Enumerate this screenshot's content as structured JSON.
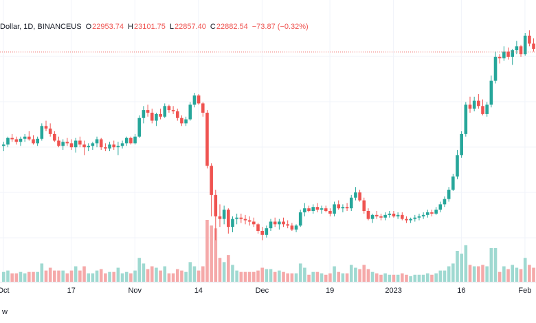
{
  "legend": {
    "symbol": "Dollar, 1D, BINANCEUS",
    "open_label": "O",
    "open": "22953.74",
    "high_label": "H",
    "high": "23101.75",
    "low_label": "L",
    "low": "22857.40",
    "close_label": "C",
    "close": "22882.54",
    "change": "−73.87 (−0.32%)"
  },
  "footer_text": "w",
  "colors": {
    "up": "#26a69a",
    "down": "#ef5350",
    "up_volume": "#9fd9d1",
    "down_volume": "#f5a9a9",
    "price_line": "#ef5350"
  },
  "chart_data": {
    "type": "candlestick",
    "x_tick_labels": [
      "Oct",
      "17",
      "Nov",
      "14",
      "Dec",
      "19",
      "2023",
      "16",
      "Feb"
    ],
    "x_tick_index": [
      0,
      16,
      31,
      46,
      61,
      77,
      92,
      108,
      123
    ],
    "bullish_volume_color": "#9fd9d1",
    "bearish_volume_color": "#f5a9a9",
    "price_line_value": 22882.54,
    "ylim": [
      15400,
      23600
    ],
    "candles": [
      [
        19350,
        19500,
        19150,
        19400
      ],
      [
        19400,
        19700,
        19300,
        19650
      ],
      [
        19650,
        19800,
        19500,
        19600
      ],
      [
        19600,
        19700,
        19400,
        19500
      ],
      [
        19500,
        19700,
        19350,
        19620
      ],
      [
        19620,
        19800,
        19500,
        19700
      ],
      [
        19700,
        19900,
        19550,
        19600
      ],
      [
        19600,
        19750,
        19400,
        19450
      ],
      [
        19450,
        19700,
        19350,
        19620
      ],
      [
        19620,
        20200,
        19550,
        20100
      ],
      [
        20100,
        20300,
        19900,
        20000
      ],
      [
        20000,
        20200,
        19700,
        19800
      ],
      [
        19800,
        19900,
        19500,
        19550
      ],
      [
        19550,
        19700,
        19300,
        19350
      ],
      [
        19350,
        19600,
        19200,
        19500
      ],
      [
        19500,
        19650,
        19350,
        19450
      ],
      [
        19450,
        19600,
        19200,
        19300
      ],
      [
        19300,
        19650,
        19100,
        19550
      ],
      [
        19550,
        19700,
        19300,
        19400
      ],
      [
        19400,
        19550,
        19000,
        19300
      ],
      [
        19300,
        19450,
        19150,
        19350
      ],
      [
        19350,
        19500,
        19200,
        19450
      ],
      [
        19450,
        19700,
        19300,
        19600
      ],
      [
        19600,
        19650,
        19200,
        19300
      ],
      [
        19300,
        19450,
        19150,
        19250
      ],
      [
        19250,
        19500,
        19150,
        19400
      ],
      [
        19400,
        19550,
        19200,
        19300
      ],
      [
        19300,
        19500,
        19000,
        19350
      ],
      [
        19350,
        19550,
        19250,
        19450
      ],
      [
        19450,
        19700,
        19350,
        19650
      ],
      [
        19650,
        19700,
        19400,
        19450
      ],
      [
        19450,
        19800,
        19400,
        19700
      ],
      [
        19700,
        20500,
        19650,
        20400
      ],
      [
        20400,
        20850,
        20200,
        20700
      ],
      [
        20700,
        20900,
        20450,
        20600
      ],
      [
        20600,
        20750,
        20200,
        20300
      ],
      [
        20300,
        20600,
        20100,
        20550
      ],
      [
        20550,
        20750,
        20350,
        20450
      ],
      [
        20450,
        20950,
        20400,
        20850
      ],
      [
        20850,
        20900,
        20600,
        20700
      ],
      [
        20700,
        20850,
        20550,
        20650
      ],
      [
        20650,
        20750,
        20300,
        20400
      ],
      [
        20400,
        20500,
        20100,
        20200
      ],
      [
        20200,
        20450,
        20100,
        20350
      ],
      [
        20350,
        21000,
        20300,
        20900
      ],
      [
        20900,
        21350,
        20800,
        21250
      ],
      [
        21250,
        21300,
        20900,
        20950
      ],
      [
        20950,
        21000,
        20450,
        20600
      ],
      [
        20600,
        20700,
        18500,
        18600
      ],
      [
        18600,
        18700,
        16700,
        17500
      ],
      [
        17500,
        17700,
        15800,
        16700
      ],
      [
        16700,
        17150,
        16300,
        16600
      ],
      [
        16600,
        17100,
        16400,
        16950
      ],
      [
        16950,
        17000,
        16050,
        16300
      ],
      [
        16300,
        16700,
        16100,
        16600
      ],
      [
        16600,
        16800,
        16400,
        16650
      ],
      [
        16650,
        16800,
        16450,
        16600
      ],
      [
        16600,
        16750,
        16400,
        16550
      ],
      [
        16550,
        16700,
        16350,
        16500
      ],
      [
        16500,
        16650,
        16300,
        16400
      ],
      [
        16400,
        16450,
        16050,
        16150
      ],
      [
        16150,
        16300,
        15800,
        16000
      ],
      [
        16000,
        16350,
        15900,
        16250
      ],
      [
        16250,
        16600,
        16150,
        16500
      ],
      [
        16500,
        16650,
        16300,
        16400
      ],
      [
        16400,
        16600,
        16200,
        16500
      ],
      [
        16500,
        16650,
        16300,
        16400
      ],
      [
        16400,
        16550,
        16250,
        16350
      ],
      [
        16350,
        16450,
        16150,
        16200
      ],
      [
        16200,
        16400,
        16100,
        16350
      ],
      [
        16350,
        16950,
        16300,
        16850
      ],
      [
        16850,
        17200,
        16700,
        17000
      ],
      [
        17000,
        17100,
        16850,
        16900
      ],
      [
        16900,
        17150,
        16800,
        17050
      ],
      [
        17050,
        17200,
        16850,
        16950
      ],
      [
        16950,
        17100,
        16800,
        17000
      ],
      [
        17000,
        17100,
        16850,
        16900
      ],
      [
        16900,
        17000,
        16700,
        16800
      ],
      [
        16800,
        17250,
        16700,
        17150
      ],
      [
        17150,
        17300,
        16950,
        17000
      ],
      [
        17000,
        17150,
        16850,
        17050
      ],
      [
        17050,
        17200,
        16900,
        17000
      ],
      [
        17000,
        17500,
        16900,
        17400
      ],
      [
        17400,
        17800,
        17300,
        17600
      ],
      [
        17600,
        17700,
        17250,
        17300
      ],
      [
        17300,
        17400,
        16800,
        16900
      ],
      [
        16900,
        17000,
        16550,
        16600
      ],
      [
        16600,
        16800,
        16450,
        16750
      ],
      [
        16750,
        16900,
        16600,
        16700
      ],
      [
        16700,
        16800,
        16550,
        16650
      ],
      [
        16650,
        16850,
        16550,
        16750
      ],
      [
        16750,
        16900,
        16650,
        16800
      ],
      [
        16800,
        16900,
        16650,
        16700
      ],
      [
        16700,
        16850,
        16600,
        16750
      ],
      [
        16750,
        16850,
        16550,
        16600
      ],
      [
        16600,
        16700,
        16450,
        16550
      ],
      [
        16550,
        16650,
        16450,
        16600
      ],
      [
        16600,
        16750,
        16500,
        16650
      ],
      [
        16650,
        16800,
        16550,
        16700
      ],
      [
        16700,
        16850,
        16600,
        16750
      ],
      [
        16750,
        16950,
        16650,
        16850
      ],
      [
        16850,
        16950,
        16700,
        16800
      ],
      [
        16800,
        17050,
        16750,
        16950
      ],
      [
        16950,
        17250,
        16850,
        17150
      ],
      [
        17150,
        17450,
        17050,
        17350
      ],
      [
        17350,
        17800,
        17250,
        17700
      ],
      [
        17700,
        18300,
        17650,
        18200
      ],
      [
        18200,
        19200,
        18100,
        19000
      ],
      [
        19000,
        19900,
        18900,
        19800
      ],
      [
        19800,
        21000,
        19700,
        20900
      ],
      [
        20900,
        21200,
        20600,
        20750
      ],
      [
        20750,
        21200,
        20650,
        21050
      ],
      [
        21050,
        21300,
        20750,
        20850
      ],
      [
        20850,
        21100,
        20500,
        20550
      ],
      [
        20550,
        21000,
        20450,
        20900
      ],
      [
        20900,
        22000,
        20800,
        21800
      ],
      [
        21800,
        22900,
        21700,
        22700
      ],
      [
        22700,
        22800,
        22450,
        22650
      ],
      [
        22650,
        23100,
        22550,
        22900
      ],
      [
        22900,
        23050,
        22600,
        22700
      ],
      [
        22700,
        23000,
        22400,
        22950
      ],
      [
        22950,
        23300,
        22800,
        23100
      ],
      [
        23100,
        23150,
        22700,
        22800
      ],
      [
        22800,
        23600,
        22750,
        23500
      ],
      [
        23500,
        23700,
        23100,
        23200
      ],
      [
        23200,
        23400,
        22900,
        23000
      ],
      [
        23000,
        23100,
        22850,
        22950
      ],
      [
        22950,
        23102,
        22857,
        22883
      ]
    ]
  }
}
